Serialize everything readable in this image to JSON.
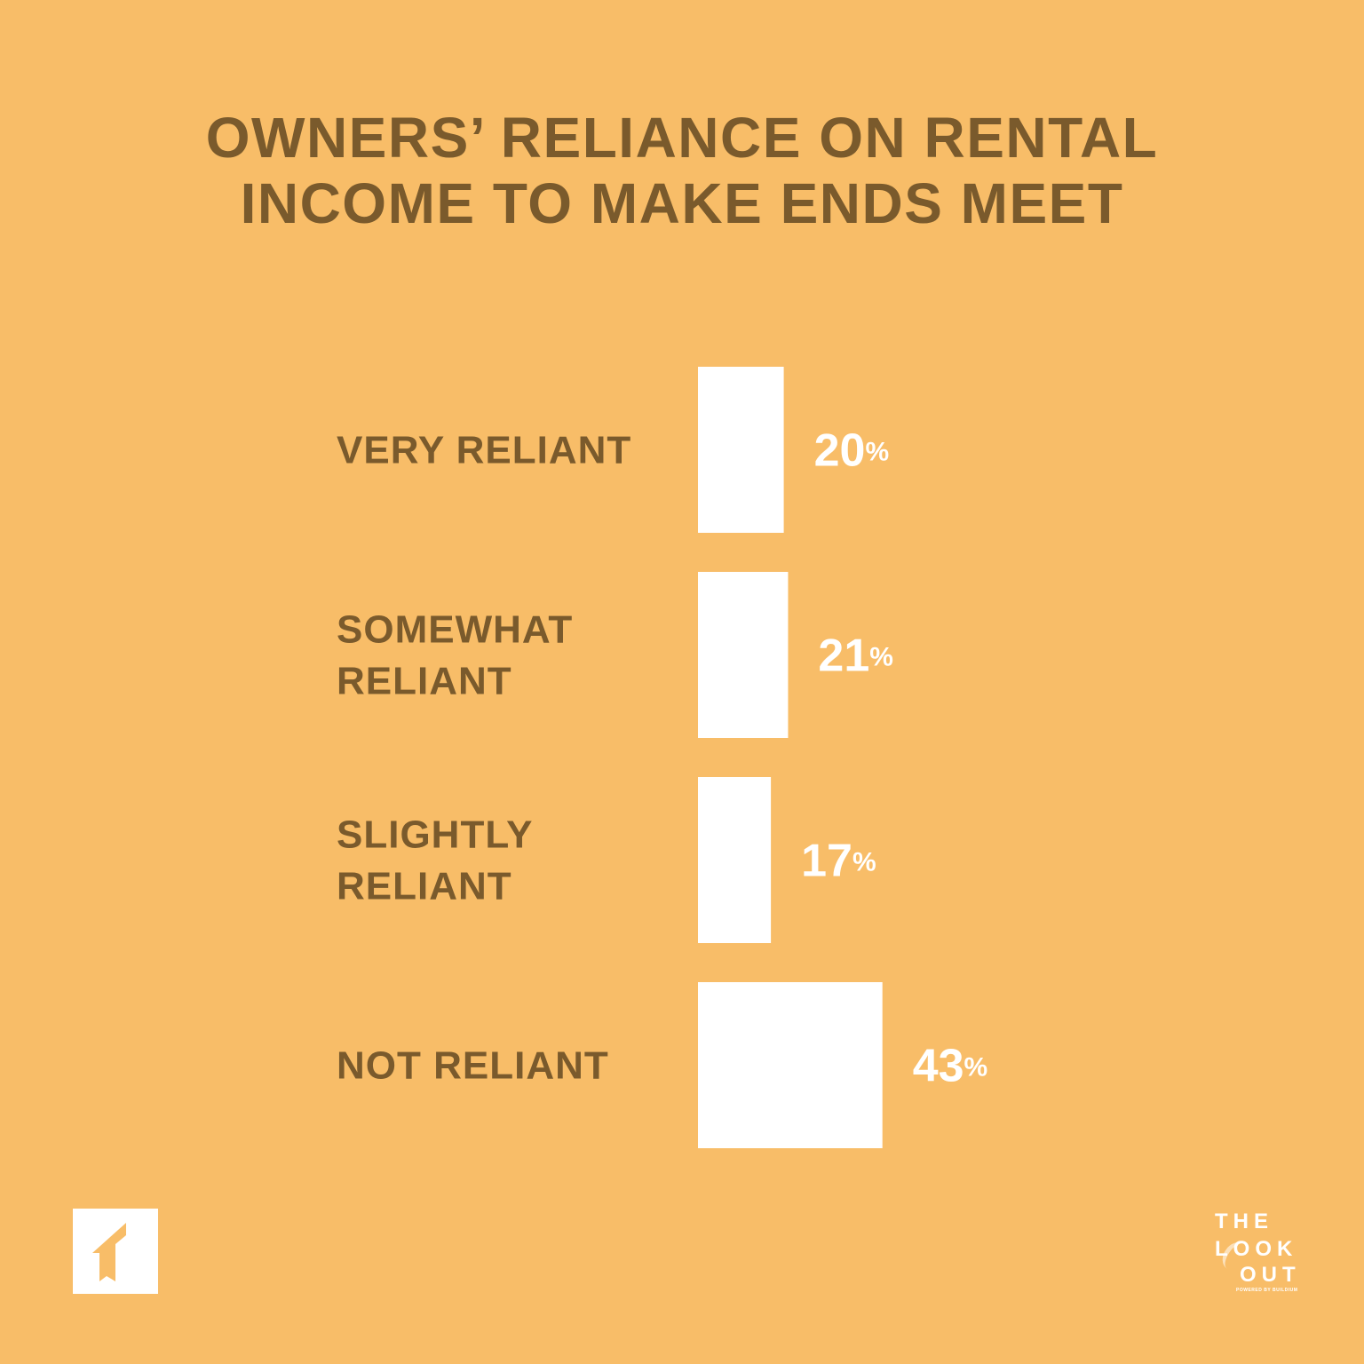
{
  "title": {
    "line1": "OWNERS’ RELIANCE ON RENTAL",
    "line2": "INCOME TO MAKE ENDS MEET"
  },
  "colors": {
    "background": "#F8BD68",
    "text": "#7A5A2C",
    "bar": "#FFFFFF",
    "value_text": "#FFFFFF"
  },
  "chart_data": {
    "type": "bar",
    "orientation": "horizontal",
    "categories": [
      [
        "VERY RELIANT"
      ],
      [
        "SOMEWHAT",
        "RELIANT"
      ],
      [
        "SLIGHTLY",
        "RELIANT"
      ],
      [
        "NOT RELIANT"
      ]
    ],
    "values": [
      20,
      21,
      17,
      43
    ],
    "value_labels": [
      "20",
      "21",
      "17",
      "43"
    ],
    "unit": "%",
    "grid": false,
    "axes_visible": false
  },
  "logos": {
    "left_icon": "buildium-arrow-logo",
    "right_line1": "THE",
    "right_line2": "LOOK",
    "right_line3": "OUT",
    "right_tagline": "POWERED BY BUILDIUM"
  }
}
